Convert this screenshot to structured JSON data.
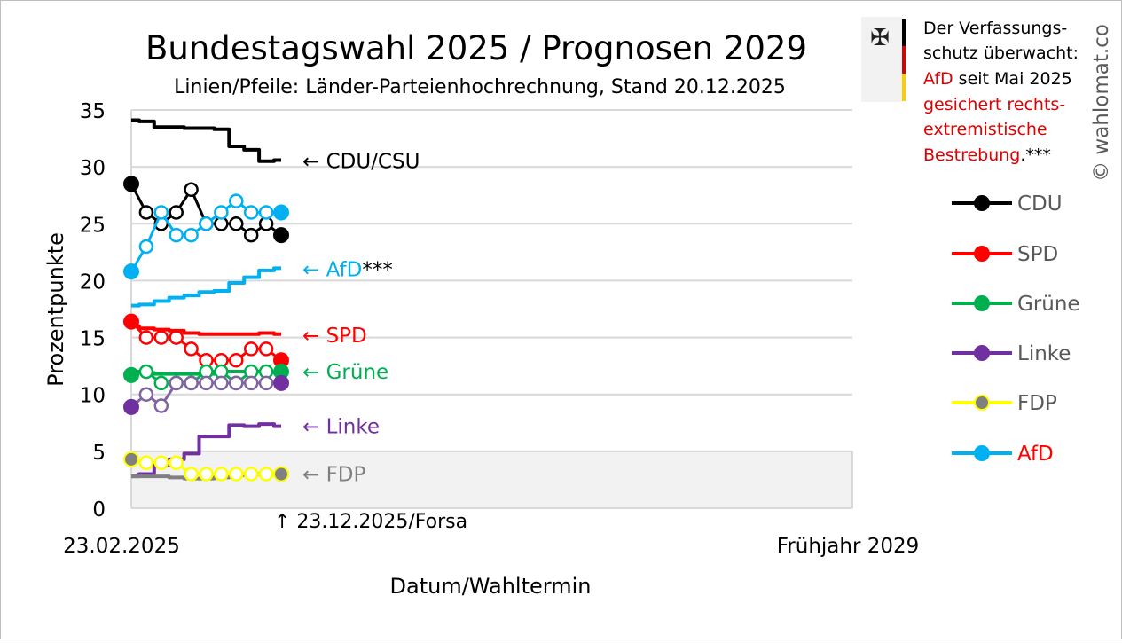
{
  "chart_data": {
    "type": "line",
    "title": "Bundestagswahl 2025 / Prognosen 2029",
    "subtitle": "Linien/Pfeile: Länder-Parteienhochrechnung, Stand 20.12.2025",
    "xlabel": "Datum/Wahltermin",
    "ylabel": "Prozentpunkte",
    "x_tick_labels": [
      "23.02.2025",
      "Frühjahr 2029"
    ],
    "y_ticks": [
      0,
      5,
      10,
      15,
      20,
      25,
      30,
      35
    ],
    "ylim": [
      0,
      35
    ],
    "grid": true,
    "shaded_band_below": 5,
    "annotation_latest": "↑ 23.12.2025/Forsa",
    "poll_points_index": [
      0,
      1,
      2,
      3,
      4,
      5,
      6,
      7,
      8,
      9,
      10
    ],
    "poll_series": [
      {
        "name": "CDU",
        "color": "#000000",
        "values": [
          28.5,
          26,
          25,
          26,
          28,
          25,
          25,
          25,
          24,
          25,
          24
        ]
      },
      {
        "name": "SPD",
        "color": "#ff0000",
        "values": [
          16.4,
          15,
          15,
          15,
          14,
          13,
          13,
          13,
          14,
          14,
          13
        ]
      },
      {
        "name": "Grüne",
        "color": "#00b050",
        "values": [
          11.7,
          12,
          11,
          11,
          11,
          12,
          12,
          11,
          12,
          12,
          12
        ]
      },
      {
        "name": "Linke",
        "color": "#7030a0",
        "open_color": "#8064a2",
        "values": [
          8.9,
          10,
          9,
          11,
          11,
          11,
          11,
          11,
          11,
          11,
          11
        ]
      },
      {
        "name": "FDP",
        "color": "#808080",
        "open_color": "#ffff00",
        "values": [
          4.3,
          4,
          4,
          4,
          3,
          3,
          3,
          3,
          3,
          3,
          3
        ]
      },
      {
        "name": "AfD",
        "color": "#00b0f0",
        "values": [
          20.8,
          23,
          26,
          24,
          24,
          25,
          26,
          27,
          26,
          26,
          26
        ]
      }
    ],
    "trend_series": [
      {
        "name": "CDU/CSU",
        "color": "#000000",
        "values": [
          34.1,
          34.0,
          33.5,
          33.5,
          33.4,
          33.4,
          33.3,
          31.8,
          31.5,
          30.5,
          30.6
        ]
      },
      {
        "name": "AfD",
        "color": "#00b0f0",
        "values": [
          17.8,
          17.9,
          18.2,
          18.5,
          18.7,
          19.0,
          19.1,
          19.8,
          20.3,
          20.9,
          21.1
        ]
      },
      {
        "name": "SPD",
        "color": "#ff0000",
        "values": [
          16.0,
          15.8,
          15.7,
          15.6,
          15.4,
          15.3,
          15.3,
          15.3,
          15.3,
          15.4,
          15.3
        ]
      },
      {
        "name": "Grüne",
        "color": "#00b050",
        "values": [
          12.0,
          11.9,
          11.8,
          11.8,
          11.8,
          11.8,
          12.0,
          12.0,
          12.0,
          12.0,
          11.9
        ]
      },
      {
        "name": "Linke",
        "color": "#7030a0",
        "values": [
          2.8,
          3.0,
          3.8,
          4.3,
          4.8,
          6.3,
          6.3,
          7.3,
          7.2,
          7.4,
          7.2
        ]
      },
      {
        "name": "FDP",
        "color": "#808080",
        "values": [
          2.8,
          2.8,
          2.8,
          2.7,
          2.6,
          2.6,
          2.7,
          2.9,
          3.0,
          3.0,
          3.0
        ]
      }
    ],
    "arrow_labels": [
      {
        "text": "← CDU/CSU",
        "suffix": "",
        "color": "#000000",
        "y": 30.5
      },
      {
        "text": "← AfD",
        "suffix": "***",
        "color": "#00b0f0",
        "y": 21
      },
      {
        "text": "← SPD",
        "suffix": "",
        "color": "#ff0000",
        "y": 15.2
      },
      {
        "text": "← Grüne",
        "suffix": "",
        "color": "#00b050",
        "y": 12
      },
      {
        "text": "← Linke",
        "suffix": "",
        "color": "#7030a0",
        "y": 7.2
      },
      {
        "text": "← FDP",
        "suffix": "",
        "color": "#808080",
        "y": 3
      }
    ],
    "legend": [
      {
        "label": "CDU",
        "line": "#000000",
        "marker": "#000000",
        "text_color": "#595959"
      },
      {
        "label": "SPD",
        "line": "#ff0000",
        "marker": "#ff0000",
        "text_color": "#595959"
      },
      {
        "label": "Grüne",
        "line": "#00b050",
        "marker": "#00b050",
        "text_color": "#595959"
      },
      {
        "label": "Linke",
        "line": "#7030a0",
        "marker": "#7030a0",
        "text_color": "#595959"
      },
      {
        "label": "FDP",
        "line": "#ffff00",
        "marker": "#808080",
        "text_color": "#595959"
      },
      {
        "label": "AfD",
        "line": "#00b0f0",
        "marker": "#00b0f0",
        "text_color": "#ff0000"
      }
    ],
    "legend_position": "right"
  },
  "notice": {
    "line1": "Der Verfassungs-",
    "line2": "schutz überwacht:",
    "line3_red": "AfD",
    "line3_rest": " seit Mai 2025",
    "line4": "gesichert rechts-",
    "line5": "extremistische",
    "line6_red": "Bestrebung",
    "line6_rest": ".***"
  },
  "copyright": "© wahlomat.co"
}
